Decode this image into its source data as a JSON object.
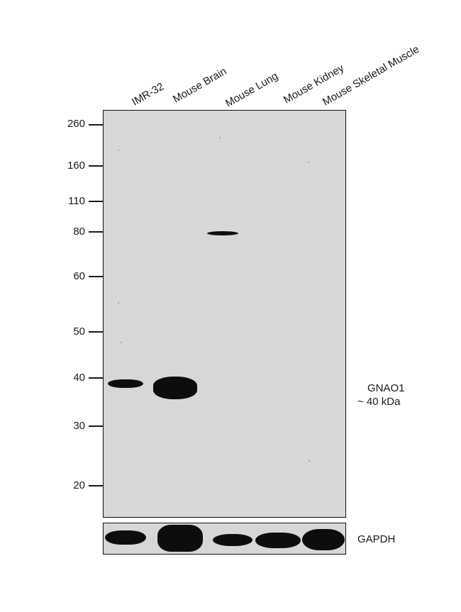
{
  "lanes": [
    {
      "label": "IMR-32"
    },
    {
      "label": "Mouse Brain"
    },
    {
      "label": "Mouse Lung"
    },
    {
      "label": "Mouse Kidney"
    },
    {
      "label": "Mouse Skeletal Muscle"
    }
  ],
  "markers": [
    "260",
    "160",
    "110",
    "80",
    "60",
    "50",
    "40",
    "30",
    "20"
  ],
  "target": {
    "name": "GNAO1",
    "size": "~ 40 kDa"
  },
  "loading_control": {
    "name": "GAPDH"
  },
  "colors": {
    "membrane": "#d7d7d7",
    "band": "#0d0d0d",
    "frame": "#111111"
  }
}
